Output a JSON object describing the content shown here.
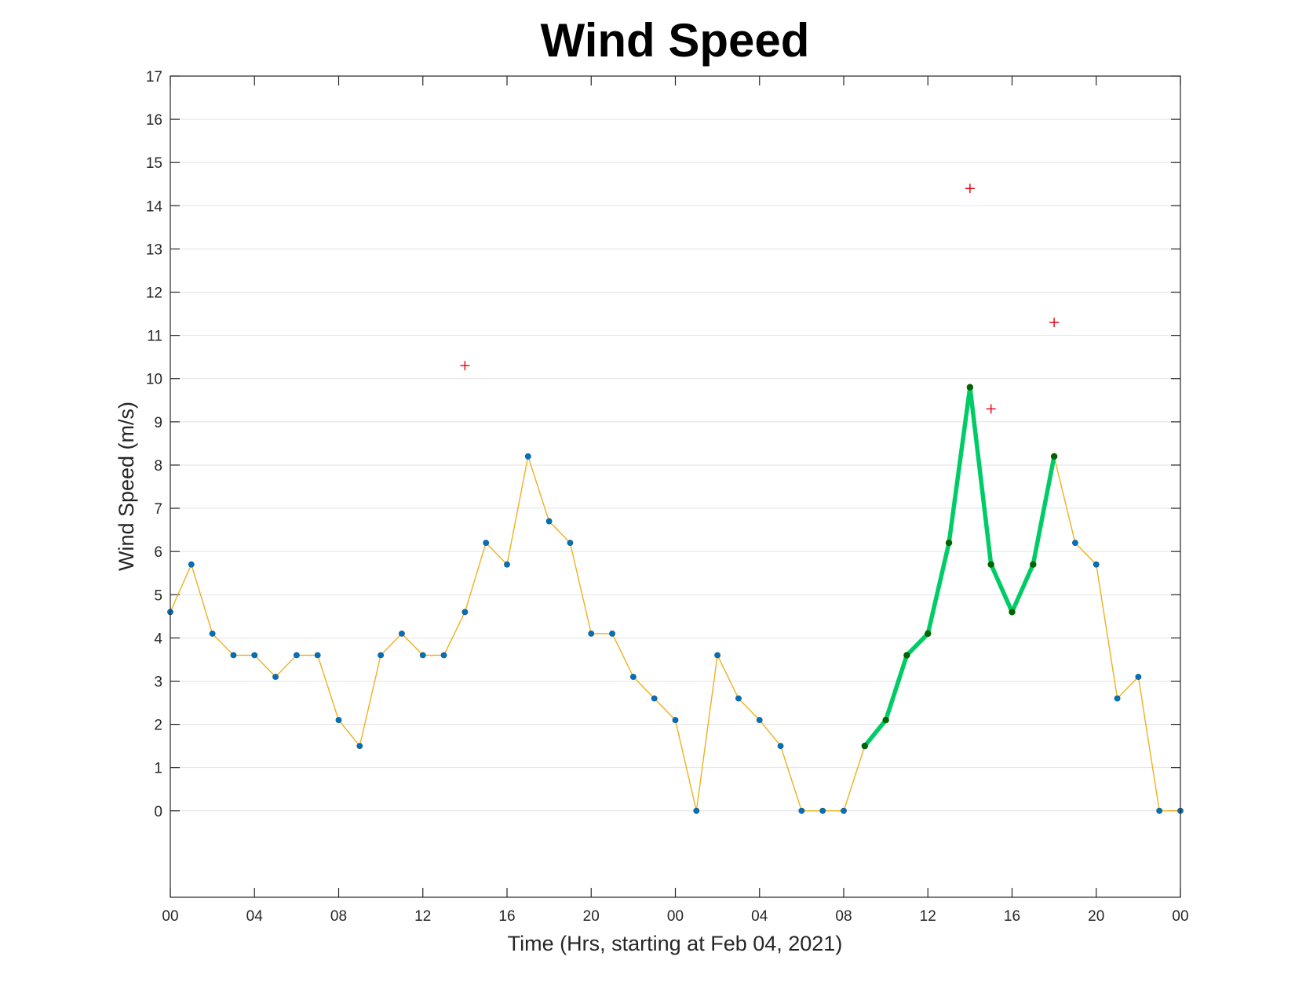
{
  "chart_data": {
    "type": "line",
    "title": "Wind Speed",
    "xlabel": "Time (Hrs, starting at Feb 04, 2021)",
    "ylabel": "Wind Speed (m/s)",
    "x_unit": "hours",
    "xlim": [
      0,
      48
    ],
    "ylim": [
      -2,
      17
    ],
    "yticks": [
      0,
      1,
      2,
      3,
      4,
      5,
      6,
      7,
      8,
      9,
      10,
      11,
      12,
      13,
      14,
      15,
      16,
      17
    ],
    "xticks": [
      {
        "x": 0,
        "label": "00"
      },
      {
        "x": 4,
        "label": "04"
      },
      {
        "x": 8,
        "label": "08"
      },
      {
        "x": 12,
        "label": "12"
      },
      {
        "x": 16,
        "label": "16"
      },
      {
        "x": 20,
        "label": "20"
      },
      {
        "x": 24,
        "label": "00"
      },
      {
        "x": 28,
        "label": "04"
      },
      {
        "x": 32,
        "label": "08"
      },
      {
        "x": 36,
        "label": "12"
      },
      {
        "x": 40,
        "label": "16"
      },
      {
        "x": 44,
        "label": "20"
      },
      {
        "x": 48,
        "label": "00"
      }
    ],
    "grid": "horizontal",
    "series": [
      {
        "type": "line-markers",
        "color": "#EDB120",
        "marker_color": "#0072BD",
        "x": [
          0,
          1,
          2,
          3,
          4,
          5,
          6,
          7,
          8,
          9,
          10,
          11,
          12,
          13,
          14,
          15,
          16,
          17,
          18,
          19,
          20,
          21,
          22,
          23,
          24,
          25,
          26,
          27,
          28,
          29,
          30,
          31,
          32,
          33,
          34,
          35,
          36,
          37,
          38,
          39,
          40,
          41,
          42,
          43,
          44,
          45,
          46,
          47,
          48
        ],
        "y": [
          4.6,
          5.7,
          4.1,
          3.6,
          3.6,
          3.1,
          3.6,
          3.6,
          2.1,
          1.5,
          3.6,
          4.1,
          3.6,
          3.6,
          4.6,
          6.2,
          5.7,
          8.2,
          6.7,
          6.2,
          4.1,
          4.1,
          3.1,
          2.6,
          2.1,
          0,
          3.6,
          2.6,
          2.1,
          1.5,
          0,
          0,
          0,
          1.5,
          2.1,
          3.6,
          4.1,
          6.2,
          9.8,
          5.7,
          4.6,
          5.7,
          8.2,
          6.2,
          5.7,
          2.6,
          3.1,
          0,
          0
        ]
      },
      {
        "type": "highlight",
        "color": "#00CC66",
        "marker_color": "#006400",
        "x": [
          33,
          34,
          35,
          36,
          37,
          38,
          39,
          40,
          41,
          42
        ],
        "y": [
          1.5,
          2.1,
          3.6,
          4.1,
          6.2,
          9.8,
          5.7,
          4.6,
          5.7,
          8.2
        ]
      },
      {
        "type": "scatter-plus",
        "color": "#E8000B",
        "x": [
          14,
          38,
          39,
          42
        ],
        "y": [
          10.3,
          14.4,
          9.3,
          11.3
        ]
      }
    ]
  }
}
